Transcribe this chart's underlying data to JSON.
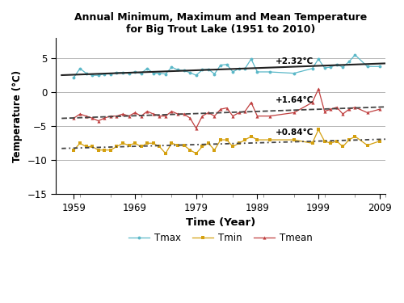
{
  "title": "Annual Minimum, Maximum and Mean Temperature\nfor Big Trout Lake (1951 to 2010)",
  "xlabel": "Time (Year)",
  "ylabel": "Temperature (°C)",
  "xlim": [
    1956,
    2010
  ],
  "ylim": [
    -15,
    8
  ],
  "yticks": [
    -15,
    -10,
    -5,
    0,
    5
  ],
  "xticks": [
    1959,
    1969,
    1979,
    1989,
    1999,
    2009
  ],
  "years": [
    1959,
    1960,
    1961,
    1962,
    1963,
    1964,
    1965,
    1966,
    1967,
    1968,
    1969,
    1970,
    1971,
    1972,
    1973,
    1974,
    1975,
    1976,
    1977,
    1978,
    1979,
    1980,
    1981,
    1982,
    1983,
    1984,
    1985,
    1986,
    1987,
    1988,
    1989,
    1991,
    1995,
    1998,
    1999,
    2000,
    2001,
    2002,
    2003,
    2004,
    2005,
    2007,
    2009
  ],
  "tmax": [
    2.2,
    3.5,
    2.8,
    2.5,
    2.5,
    2.7,
    2.7,
    2.9,
    2.9,
    2.8,
    3.0,
    2.8,
    3.5,
    2.8,
    2.8,
    2.7,
    3.7,
    3.3,
    3.2,
    2.9,
    2.5,
    3.3,
    3.4,
    2.7,
    4.0,
    4.1,
    3.0,
    3.5,
    3.5,
    4.9,
    3.0,
    3.0,
    2.8,
    3.5,
    4.9,
    3.6,
    3.7,
    4.1,
    3.7,
    4.5,
    5.5,
    3.8,
    3.8
  ],
  "tmean": [
    -3.8,
    -3.2,
    -3.5,
    -3.8,
    -4.2,
    -3.8,
    -3.5,
    -3.5,
    -3.2,
    -3.5,
    -3.0,
    -3.5,
    -2.8,
    -3.2,
    -3.5,
    -3.5,
    -2.8,
    -3.2,
    -3.2,
    -3.8,
    -5.3,
    -3.5,
    -3.0,
    -3.5,
    -2.5,
    -2.3,
    -3.5,
    -3.0,
    -2.8,
    -1.5,
    -3.5,
    -3.5,
    -3.0,
    -1.5,
    0.5,
    -2.8,
    -2.5,
    -2.2,
    -3.2,
    -2.5,
    -2.2,
    -3.0,
    -2.5
  ],
  "tmin": [
    -8.5,
    -7.5,
    -8.0,
    -8.0,
    -8.5,
    -8.5,
    -8.5,
    -8.0,
    -7.5,
    -7.8,
    -7.5,
    -8.0,
    -7.5,
    -7.5,
    -8.0,
    -9.0,
    -7.5,
    -7.8,
    -7.8,
    -8.5,
    -9.0,
    -8.0,
    -7.5,
    -8.5,
    -7.0,
    -7.0,
    -8.0,
    -7.5,
    -7.0,
    -6.5,
    -7.0,
    -7.0,
    -7.0,
    -7.5,
    -5.5,
    -7.2,
    -7.5,
    -7.2,
    -8.0,
    -7.0,
    -6.5,
    -7.8,
    -7.2
  ],
  "tmax_color": "#5BB8C8",
  "tmean_color": "#C04040",
  "tmin_color": "#D4A010",
  "tmax_trend_color": "#222222",
  "tmean_trend_color": "#444444",
  "tmin_trend_color": "#444444",
  "annotation_tmax": "+2.32°C",
  "annotation_tmean": "+1.64°C",
  "annotation_tmin": "+0.84°C",
  "ann_tmax_x": 1992,
  "ann_tmax_y": 4.2,
  "ann_tmean_x": 1992,
  "ann_tmean_y": -1.5,
  "ann_tmin_x": 1992,
  "ann_tmin_y": -6.3
}
